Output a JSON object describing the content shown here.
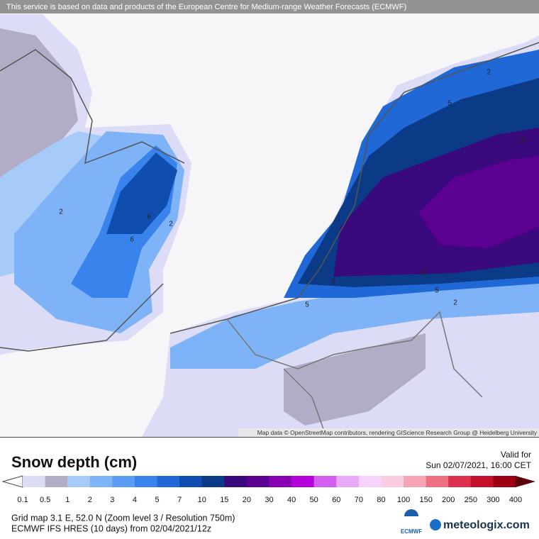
{
  "header": {
    "notice": "This service is based on data and products of the European Centre for Medium-range Weather Forecasts (ECMWF)"
  },
  "map": {
    "attribution": "Map data © OpenStreetMap contributors, rendering GIScience Research Group @ Heidelberg University",
    "contour_labels": [
      "2",
      "2",
      "6",
      "5",
      "2",
      "5",
      "10",
      "10",
      "5",
      "2",
      "5",
      "6"
    ]
  },
  "legend": {
    "title": "Snow depth (cm)",
    "valid_label": "Valid for",
    "valid_time": "Sun 02/07/2021, 16:00 CET",
    "labels": [
      "0.1",
      "0.5",
      "1",
      "2",
      "3",
      "4",
      "5",
      "7",
      "10",
      "15",
      "20",
      "30",
      "40",
      "50",
      "60",
      "70",
      "80",
      "100",
      "150",
      "200",
      "250",
      "300",
      "400"
    ],
    "colors": [
      "#ffffff",
      "#dcdcf6",
      "#b1adc6",
      "#a6cbf8",
      "#7fb3f7",
      "#5a9ef3",
      "#3884ec",
      "#1f68d6",
      "#0f4daf",
      "#0b3a86",
      "#3a0a7c",
      "#5b0090",
      "#8800b2",
      "#b400da",
      "#d35ef0",
      "#e8aaf8",
      "#f6d2fc",
      "#fbcde2",
      "#f7a5b6",
      "#ee6f80",
      "#dd2f4e",
      "#c4102a",
      "#9e0012",
      "#5a0008"
    ]
  },
  "footer": {
    "grid": "Grid map 3.1 E, 52.0 N (Zoom level 3 / Resolution 750m)",
    "model": "ECMWF IFS HRES (10 days) from 02/04/2021/12z",
    "ecmwf_logo": "ECMWF",
    "brand": "meteologix.com"
  }
}
